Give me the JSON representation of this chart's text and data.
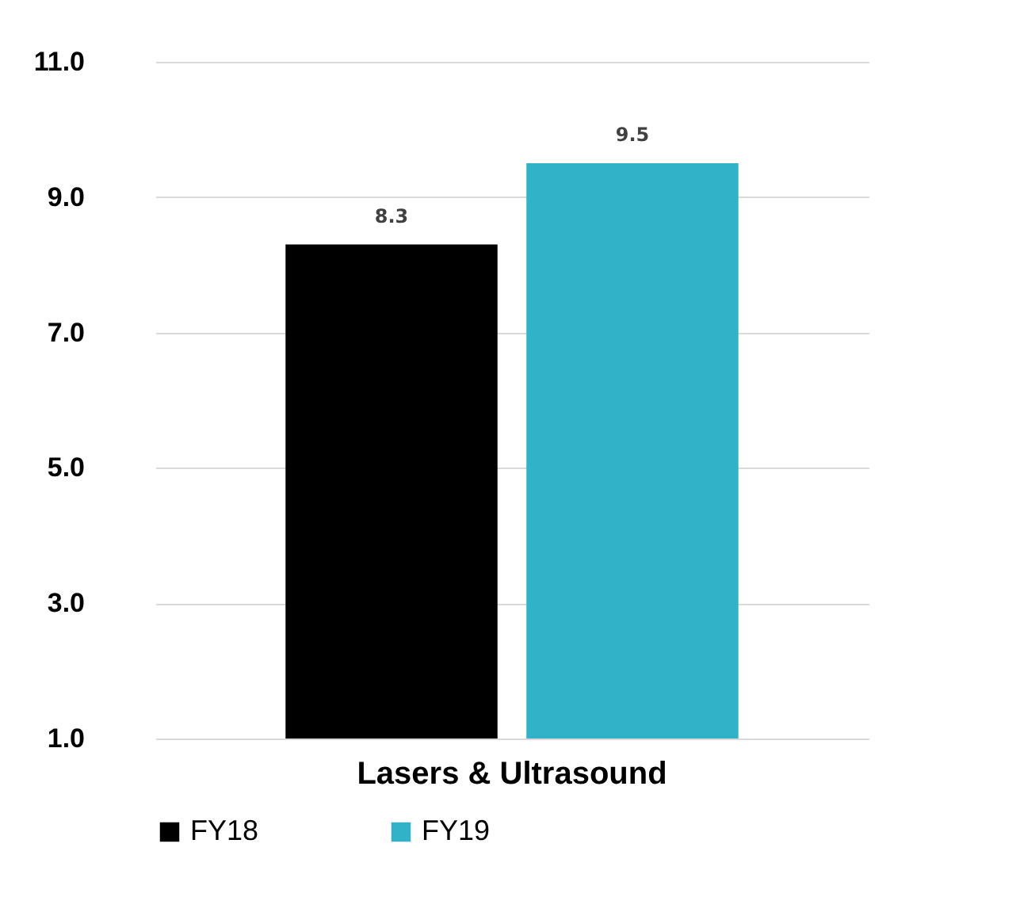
{
  "chart_data": {
    "type": "bar",
    "categories": [
      "Lasers & Ultrasound"
    ],
    "series": [
      {
        "name": "FY18",
        "color": "#000000",
        "values": [
          8.3
        ]
      },
      {
        "name": "FY19",
        "color": "#31b2c8",
        "values": [
          9.5
        ]
      }
    ],
    "ylim": [
      1.0,
      11.0
    ],
    "yticks": [
      {
        "value": 1,
        "label": "1.0"
      },
      {
        "value": 3,
        "label": "3.0"
      },
      {
        "value": 5,
        "label": "5.0"
      },
      {
        "value": 7,
        "label": "7.0"
      },
      {
        "value": 9,
        "label": "9.0"
      },
      {
        "value": 11,
        "label": "11.0"
      }
    ],
    "grid": "y",
    "legend": "bottom",
    "data_labels": true
  }
}
